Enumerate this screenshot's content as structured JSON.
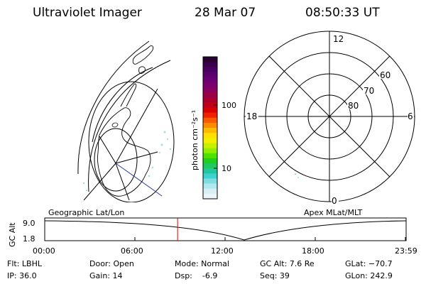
{
  "header": {
    "instrument": "Ultraviolet Imager",
    "date": "28 Mar 07",
    "time": "08:50:33 UT"
  },
  "colorbar": {
    "label": "photon cm⁻²s⁻¹",
    "ticks": [
      "100",
      "10"
    ],
    "colors": [
      "#2a0033",
      "#3a004a",
      "#4a0060",
      "#5b006c",
      "#6a0074",
      "#7a0070",
      "#8a0060",
      "#9a0048",
      "#aa0030",
      "#c00018",
      "#d80000",
      "#ee2200",
      "#f85a00",
      "#fb8c00",
      "#ffbb00",
      "#ffe000",
      "#f0f000",
      "#c8f000",
      "#90ee00",
      "#50e000",
      "#20d020",
      "#20c860",
      "#20c8a0",
      "#40d0d0",
      "#80dce0",
      "#b0e8ee",
      "#d8f0f4",
      "#eaf4f6"
    ]
  },
  "geo_map": {
    "caption": "Geographic Lat/Lon"
  },
  "polar_plot": {
    "caption": "Apex MLat/MLT",
    "mlt_labels": {
      "top": "12",
      "left": "18",
      "right": "6",
      "bottom": "0"
    },
    "lat_labels": [
      "60",
      "70",
      "80"
    ]
  },
  "altitude_plot": {
    "ylabel": "GC Alt",
    "ytick_top": "9.0",
    "ytick_bottom": "1.8",
    "xticks": [
      "00:00",
      "06:00",
      "12:00",
      "18:00",
      "23:59"
    ],
    "current_time_hours": 8.84,
    "marker_color": "#dd0000"
  },
  "info": {
    "filter": "Flt: LBHL",
    "ip": "IP: 36.0",
    "door": "Door: Open",
    "gain": "Gain: 14",
    "mode": "Mode: Normal",
    "dsp": "Dsp:    -6.9",
    "gc_alt": "GC Alt: 7.6 Re",
    "seq": "Seq: 39",
    "glat": "GLat: −70.7",
    "glon": "GLon: 242.9"
  }
}
